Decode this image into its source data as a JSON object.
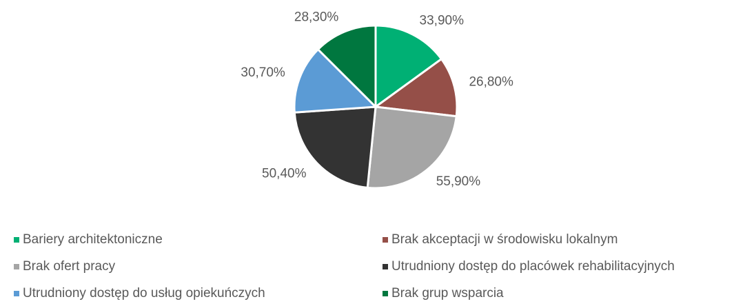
{
  "chart_data": {
    "type": "pie",
    "categories": [
      "Bariery architektoniczne",
      "Brak akceptacji w środowisku lokalnym",
      "Brak ofert pracy",
      "Utrudniony dostęp do placówek rehabilitacyjnych",
      "Utrudniony dostęp do usług opiekuńczych",
      "Brak grup wsparcia"
    ],
    "values": [
      33.9,
      26.8,
      55.9,
      50.4,
      30.7,
      28.3
    ],
    "value_labels": [
      "33,90%",
      "26,80%",
      "55,90%",
      "50,40%",
      "30,70%",
      "28,30%"
    ],
    "colors": [
      "#00b074",
      "#954f48",
      "#a5a5a5",
      "#333333",
      "#5b9bd5",
      "#00773f"
    ],
    "legend": "bottom"
  }
}
